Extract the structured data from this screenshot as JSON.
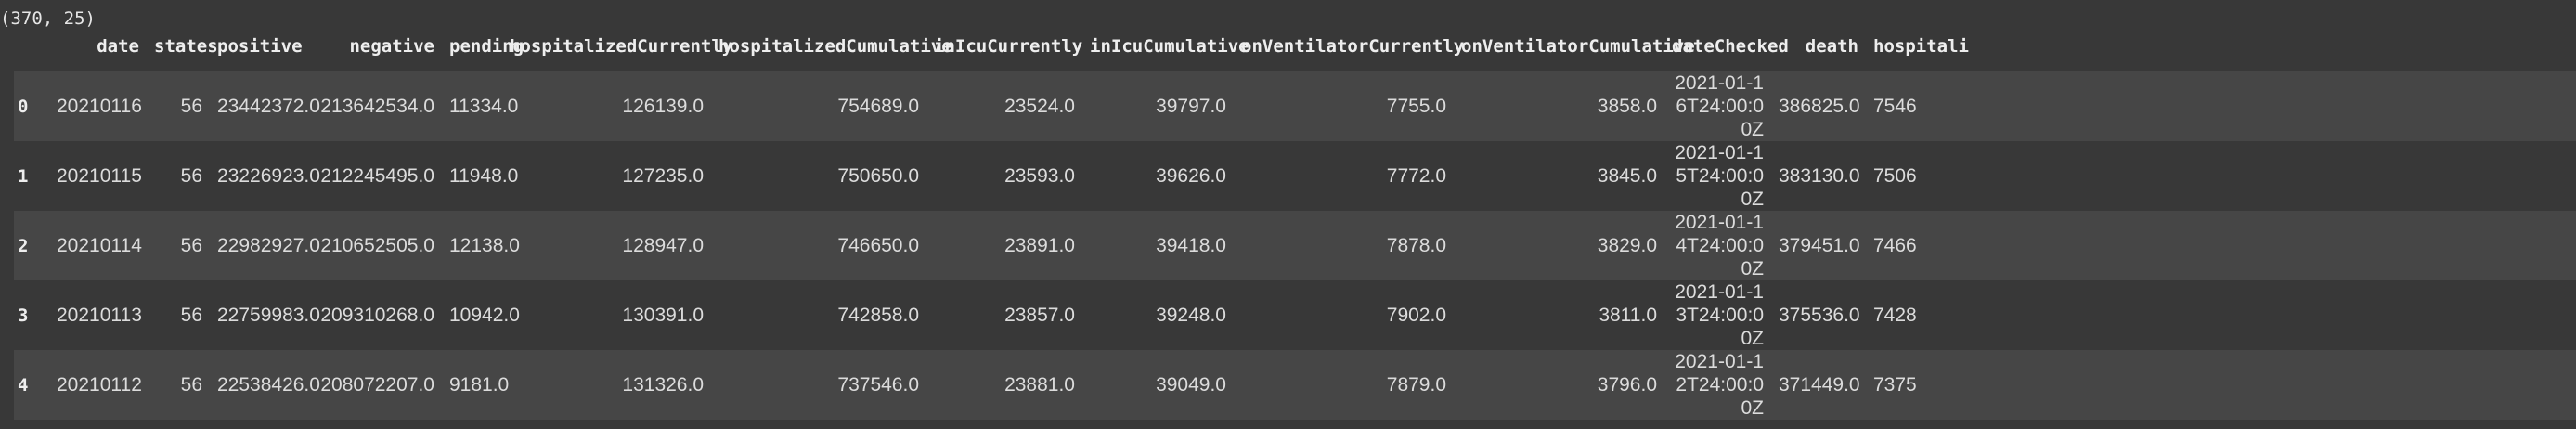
{
  "output": {
    "shape": "(370, 25)"
  },
  "table": {
    "columns": [
      "date",
      "states",
      "positive",
      "negative",
      "pending",
      "hospitalizedCurrently",
      "hospitalizedCumulative",
      "inIcuCurrently",
      "inIcuCumulative",
      "onVentilatorCurrently",
      "onVentilatorCumulative",
      "dateChecked",
      "death",
      "hospitali"
    ],
    "rows": [
      {
        "index": "0",
        "cells": [
          "20210116",
          "56",
          "23442372.0",
          "213642534.0",
          "11334.0",
          "126139.0",
          "754689.0",
          "23524.0",
          "39797.0",
          "7755.0",
          "3858.0",
          "2021-01-16T24:00:00Z",
          "386825.0",
          "7546"
        ]
      },
      {
        "index": "1",
        "cells": [
          "20210115",
          "56",
          "23226923.0",
          "212245495.0",
          "11948.0",
          "127235.0",
          "750650.0",
          "23593.0",
          "39626.0",
          "7772.0",
          "3845.0",
          "2021-01-15T24:00:00Z",
          "383130.0",
          "7506"
        ]
      },
      {
        "index": "2",
        "cells": [
          "20210114",
          "56",
          "22982927.0",
          "210652505.0",
          "12138.0",
          "128947.0",
          "746650.0",
          "23891.0",
          "39418.0",
          "7878.0",
          "3829.0",
          "2021-01-14T24:00:00Z",
          "379451.0",
          "7466"
        ]
      },
      {
        "index": "3",
        "cells": [
          "20210113",
          "56",
          "22759983.0",
          "209310268.0",
          "10942.0",
          "130391.0",
          "742858.0",
          "23857.0",
          "39248.0",
          "7902.0",
          "3811.0",
          "2021-01-13T24:00:00Z",
          "375536.0",
          "7428"
        ]
      },
      {
        "index": "4",
        "cells": [
          "20210112",
          "56",
          "22538426.0",
          "208072207.0",
          "9181.0",
          "131326.0",
          "737546.0",
          "23881.0",
          "39049.0",
          "7879.0",
          "3796.0",
          "2021-01-12T24:00:00Z",
          "371449.0",
          "7375"
        ]
      }
    ]
  }
}
